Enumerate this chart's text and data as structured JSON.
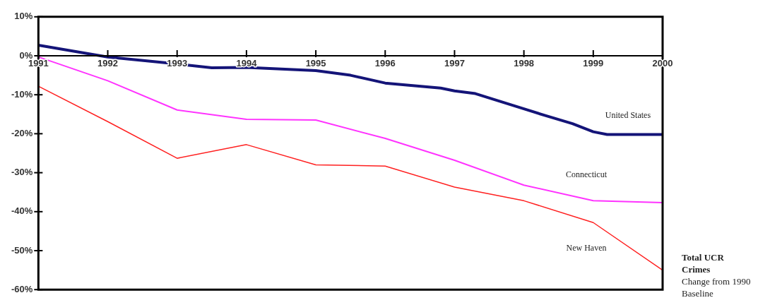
{
  "chart_data": {
    "type": "line",
    "title": "Total UCR Crimes",
    "subtitle": "Change from 1990 Baseline",
    "xlim": [
      1991,
      2000
    ],
    "xticks": [
      1991,
      1992,
      1993,
      1994,
      1995,
      1996,
      1997,
      1998,
      1999,
      2000
    ],
    "ylim": [
      -60,
      10
    ],
    "yticks": [
      {
        "value": 10,
        "label": "10%"
      },
      {
        "value": 0,
        "label": "0%"
      },
      {
        "value": -10,
        "label": "-10%"
      },
      {
        "value": -20,
        "label": "-20%"
      },
      {
        "value": -30,
        "label": "-30%"
      },
      {
        "value": -40,
        "label": "-40%"
      },
      {
        "value": -50,
        "label": "-50%"
      },
      {
        "value": -60,
        "label": "-60%"
      }
    ],
    "grid": false,
    "legend": false,
    "marker": "none",
    "line_style": "solid",
    "series": [
      {
        "name": "United States",
        "color": "#141478",
        "x": [
          1991,
          1992,
          1993,
          1993.5,
          1994,
          1995,
          1995.5,
          1996,
          1996.8,
          1997,
          1997.3,
          1998,
          1998.3,
          1998.7,
          1999,
          1999.2,
          2000
        ],
        "values": [
          2.7,
          -0.3,
          -2.1,
          -3.1,
          -3,
          -3.8,
          -5,
          -7,
          -8.3,
          -9,
          -9.7,
          -13.6,
          -15.3,
          -17.4,
          -19.5,
          -20.2,
          -20.2
        ]
      },
      {
        "name": "Connecticut",
        "color": "#ff33ff",
        "x": [
          1991,
          1992,
          1993,
          1994,
          1995,
          1996,
          1997,
          1998,
          1999,
          2000
        ],
        "values": [
          -0.3,
          -6.4,
          -13.9,
          -16.3,
          -16.5,
          -21.2,
          -26.8,
          -33.2,
          -37.2,
          -37.7
        ]
      },
      {
        "name": "New Haven",
        "color": "#ff2020",
        "x": [
          1991,
          1992,
          1993,
          1994,
          1995,
          1996,
          1997,
          1998,
          1999,
          2000
        ],
        "values": [
          -7.8,
          -16.9,
          -26.3,
          -22.8,
          -28,
          -28.3,
          -33.7,
          -37.2,
          -42.8,
          -55
        ]
      }
    ]
  }
}
